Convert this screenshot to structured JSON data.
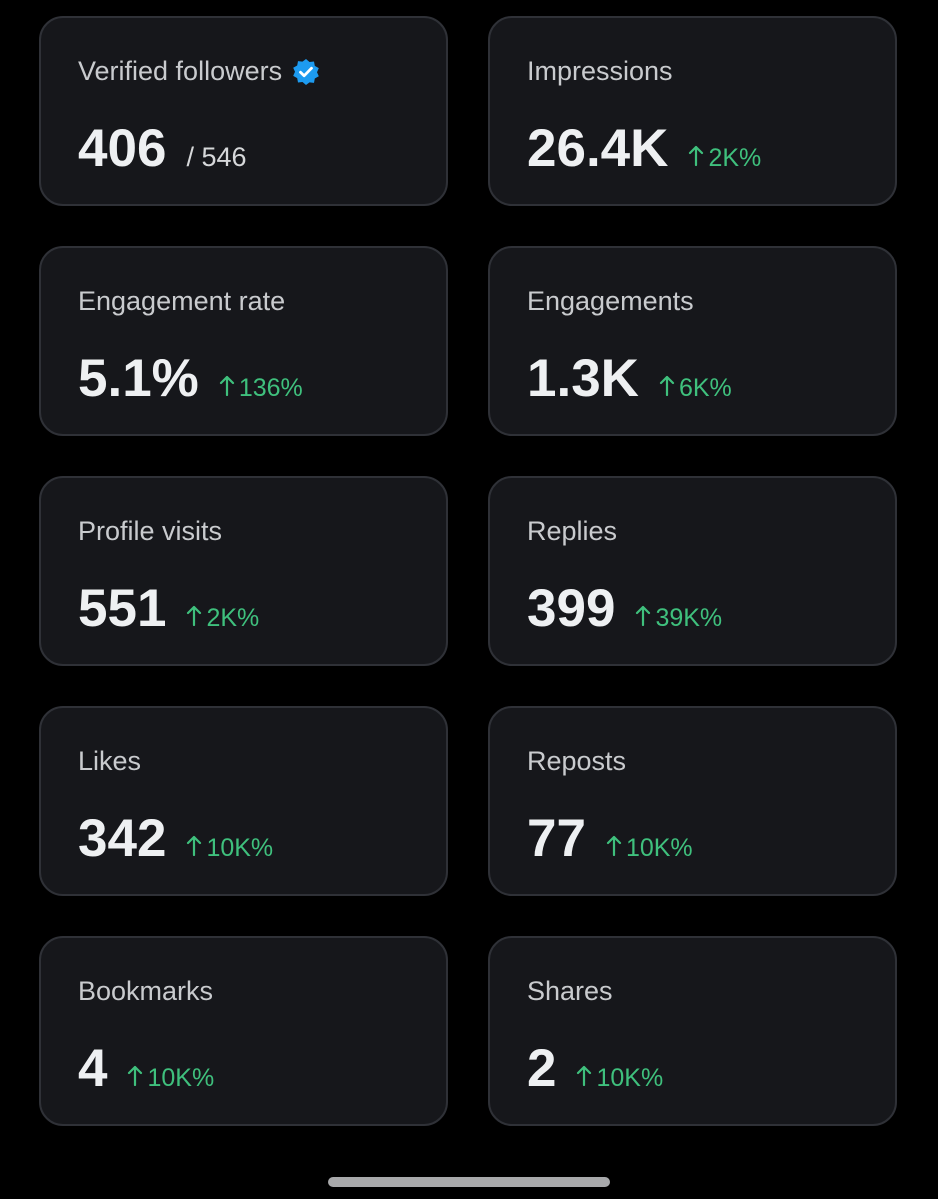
{
  "cards": [
    {
      "label": "Verified followers",
      "value": "406",
      "total": "/ 546"
    },
    {
      "label": "Impressions",
      "value": "26.4K",
      "change": "2K%"
    },
    {
      "label": "Engagement rate",
      "value": "5.1%",
      "change": "136%"
    },
    {
      "label": "Engagements",
      "value": "1.3K",
      "change": "6K%"
    },
    {
      "label": "Profile visits",
      "value": "551",
      "change": "2K%"
    },
    {
      "label": "Replies",
      "value": "399",
      "change": "39K%"
    },
    {
      "label": "Likes",
      "value": "342",
      "change": "10K%"
    },
    {
      "label": "Reposts",
      "value": "77",
      "change": "10K%"
    },
    {
      "label": "Bookmarks",
      "value": "4",
      "change": "10K%"
    },
    {
      "label": "Shares",
      "value": "2",
      "change": "10K%"
    }
  ]
}
